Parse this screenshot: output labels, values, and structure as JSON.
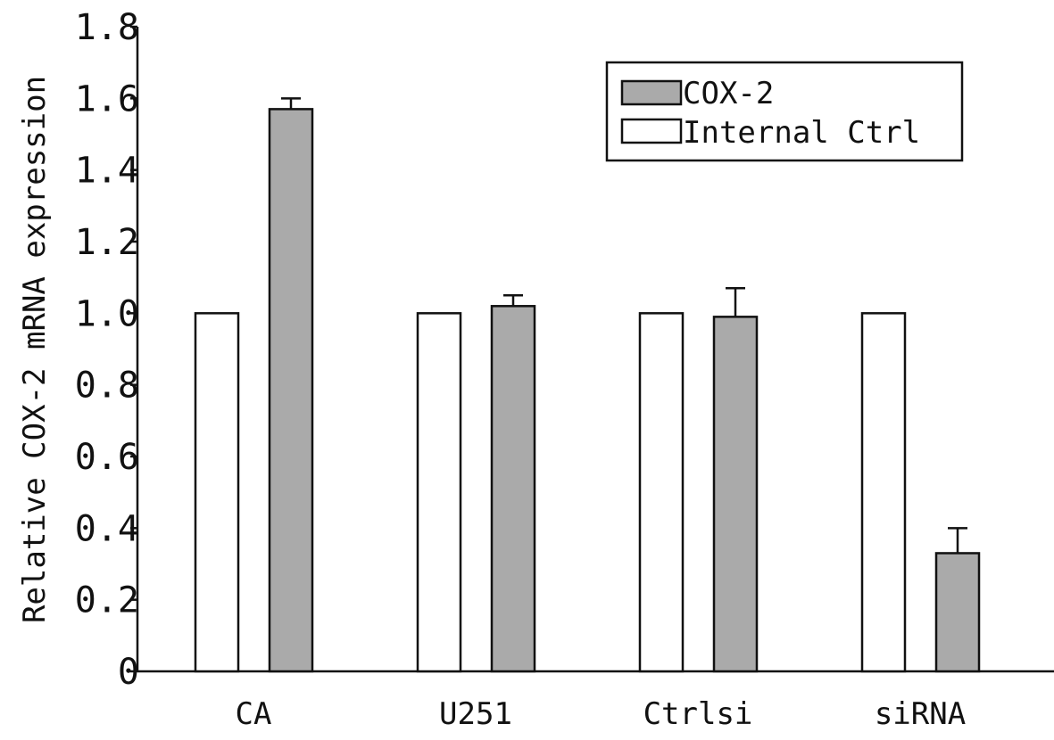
{
  "chart_data": {
    "type": "bar",
    "title": "",
    "xlabel": "",
    "ylabel": "Relative COX-2 mRNA expression",
    "ylim": [
      0,
      1.8
    ],
    "yticks": [
      "0",
      "0.2",
      "0.4",
      "0.6",
      "0.8",
      "1.0",
      "1.2",
      "1.4",
      "1.6",
      "1.8"
    ],
    "categories": [
      "CA",
      "U251",
      "Ctrlsi",
      "siRNA"
    ],
    "grid": false,
    "legend_position": "top-right",
    "series": [
      {
        "name": "Internal Ctrl",
        "color": "#ffffff",
        "values": [
          1.0,
          1.0,
          1.0,
          1.0
        ],
        "errors": [
          0,
          0,
          0,
          0
        ]
      },
      {
        "name": "COX-2",
        "color": "#aaaaaa",
        "values": [
          1.57,
          1.02,
          0.99,
          0.33
        ],
        "errors": [
          0.03,
          0.03,
          0.08,
          0.07
        ]
      }
    ]
  }
}
